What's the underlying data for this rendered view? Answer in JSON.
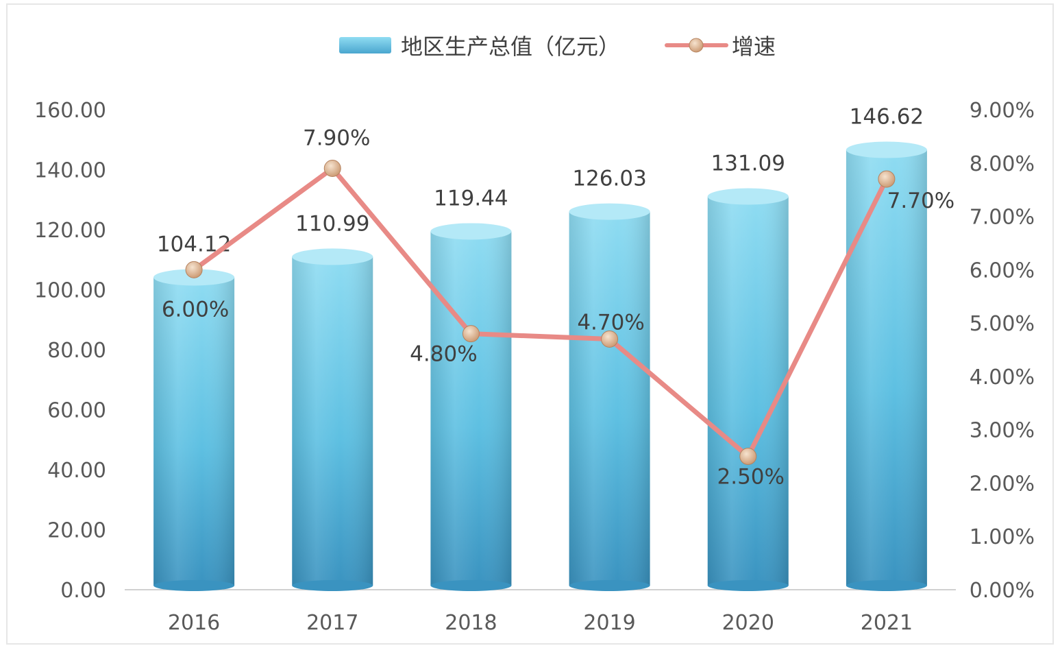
{
  "chart_data": {
    "type": "bar",
    "categories": [
      "2016",
      "2017",
      "2018",
      "2019",
      "2020",
      "2021"
    ],
    "series": [
      {
        "name": "地区生产总值（亿元）",
        "type": "bar",
        "axis": "left",
        "values": [
          104.12,
          110.99,
          119.44,
          126.03,
          131.09,
          146.62
        ],
        "labels": [
          "104.12",
          "110.99",
          "119.44",
          "126.03",
          "131.09",
          "146.62"
        ]
      },
      {
        "name": "增速",
        "type": "line",
        "axis": "right",
        "values": [
          6.0,
          7.9,
          4.8,
          4.7,
          2.5,
          7.7
        ],
        "labels": [
          "6.00%",
          "7.90%",
          "4.80%",
          "4.70%",
          "2.50%",
          "7.70%"
        ]
      }
    ],
    "y_left": {
      "min": 0,
      "max": 160,
      "ticks": [
        "0.00",
        "20.00",
        "40.00",
        "60.00",
        "80.00",
        "100.00",
        "120.00",
        "140.00",
        "160.00"
      ]
    },
    "y_right": {
      "min": 0,
      "max": 9,
      "ticks": [
        "0.00%",
        "1.00%",
        "2.00%",
        "3.00%",
        "4.00%",
        "5.00%",
        "6.00%",
        "7.00%",
        "8.00%",
        "9.00%"
      ]
    },
    "legend_position": "top-center",
    "grid": false,
    "colors": {
      "bar_top": "#8fdcf2",
      "bar_mid": "#5ec0e2",
      "bar_bottom": "#3a93c0",
      "line": "#e88a86",
      "marker": "#d9b18f",
      "axis": "#d0d0d0"
    }
  }
}
